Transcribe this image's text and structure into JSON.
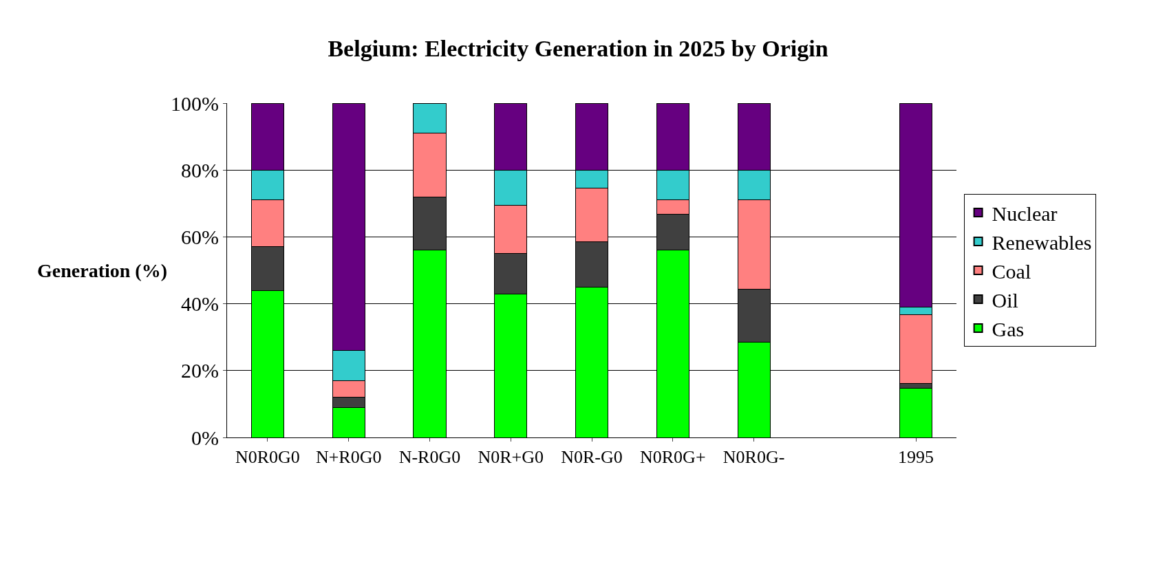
{
  "chart_data": {
    "type": "bar",
    "stacked": true,
    "title": "Belgium: Electricity Generation in 2025 by Origin",
    "ylabel": "Generation (%)",
    "categories": [
      "N0R0G0",
      "N+R0G0",
      "N-R0G0",
      "N0R+G0",
      "N0R-G0",
      "N0R0G+",
      "N0R0G-",
      null,
      "1995"
    ],
    "series": [
      {
        "name": "Gas",
        "color": "#00ff00",
        "values": [
          44,
          9,
          56,
          43,
          45,
          56,
          28.4,
          null,
          14.8
        ]
      },
      {
        "name": "Oil",
        "color": "#404040",
        "values": [
          13,
          3,
          16,
          12,
          13.6,
          10.7,
          15.9,
          null,
          1.3
        ]
      },
      {
        "name": "Coal",
        "color": "#ff8080",
        "values": [
          14,
          5,
          19,
          14.5,
          15.9,
          4.3,
          26.7,
          null,
          20.6
        ]
      },
      {
        "name": "Renewables",
        "color": "#33cccc",
        "values": [
          9,
          9,
          9,
          10.5,
          5.5,
          9,
          9,
          null,
          2.3
        ]
      },
      {
        "name": "Nuclear",
        "color": "#660080",
        "values": [
          20,
          74,
          null,
          20,
          20,
          20,
          20,
          null,
          61
        ]
      }
    ],
    "ylim": [
      0,
      100
    ],
    "yticks": [
      {
        "value": 0,
        "label": "0%"
      },
      {
        "value": 20,
        "label": "20%"
      },
      {
        "value": 40,
        "label": "40%"
      },
      {
        "value": 60,
        "label": "60%"
      },
      {
        "value": 80,
        "label": "80%"
      },
      {
        "value": 100,
        "label": "100%"
      }
    ],
    "grid": "y",
    "legend": "right"
  }
}
